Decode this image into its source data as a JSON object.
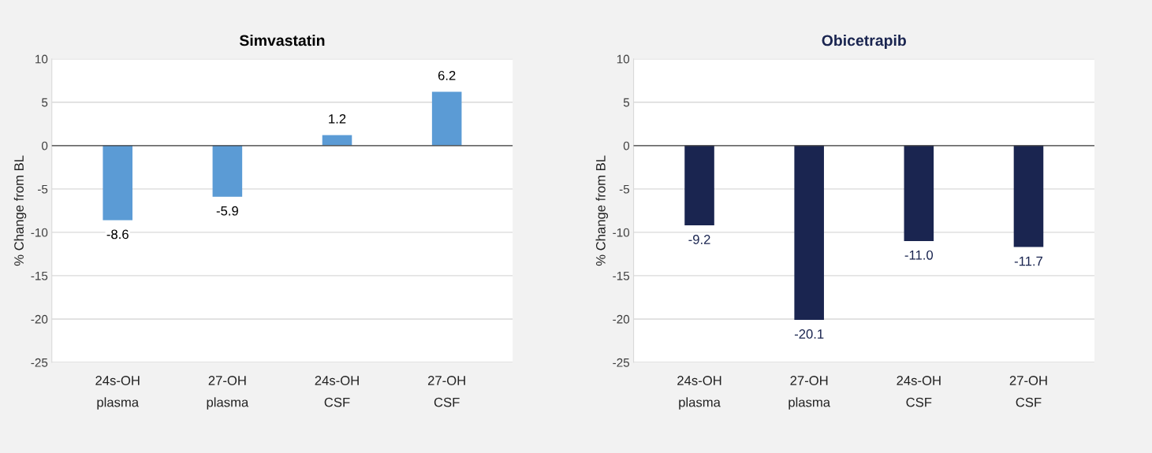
{
  "chart_data": [
    {
      "type": "bar",
      "title": "Simvastatin",
      "ylabel": "% Change from BL",
      "categories": [
        "24s-OH\nplasma",
        "27-OH\nplasma",
        "24s-OH\nCSF",
        "27-OH\nCSF"
      ],
      "values": [
        -8.6,
        -5.9,
        1.2,
        6.2
      ],
      "value_labels": [
        "-8.6",
        "-5.9",
        "1.2",
        "6.2"
      ],
      "color": "#5b9bd5",
      "ylim": [
        -25,
        10
      ],
      "yticks": [
        -25,
        -20,
        -15,
        -10,
        -5,
        0,
        5,
        10
      ],
      "grid": "y"
    },
    {
      "type": "bar",
      "title": "Obicetrapib",
      "ylabel": "% Change from BL",
      "categories": [
        "24s-OH\nplasma",
        "27-OH\nplasma",
        "24s-OH\nCSF",
        "27-OH\nCSF"
      ],
      "values": [
        -9.2,
        -20.1,
        -11.0,
        -11.7
      ],
      "value_labels": [
        "-9.2",
        "-20.1",
        "-11.0",
        "-11.7"
      ],
      "color": "#1a2550",
      "ylim": [
        -25,
        10
      ],
      "yticks": [
        -25,
        -20,
        -15,
        -10,
        -5,
        0,
        5,
        10
      ],
      "grid": "y"
    }
  ]
}
